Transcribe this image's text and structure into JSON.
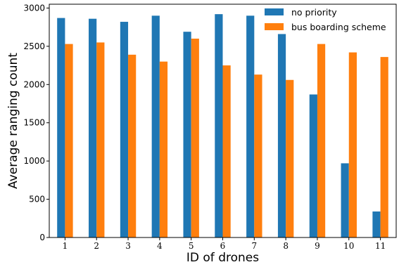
{
  "chart_data": {
    "type": "bar",
    "title": "",
    "xlabel": "ID of drones",
    "ylabel": "Average ranging count",
    "categories": [
      "1",
      "2",
      "3",
      "4",
      "5",
      "6",
      "7",
      "8",
      "9",
      "10",
      "11"
    ],
    "ylim": [
      0,
      3050
    ],
    "yticks": [
      "0",
      "500",
      "1000",
      "1500",
      "2000",
      "2500",
      "3000"
    ],
    "grid": false,
    "legend_position": "top-right",
    "series": [
      {
        "name": "no priority",
        "color": "#1f77b4",
        "values": [
          2870,
          2860,
          2820,
          2900,
          2690,
          2920,
          2900,
          2660,
          1870,
          970,
          340
        ]
      },
      {
        "name": "bus boarding scheme",
        "color": "#ff7f0e",
        "values": [
          2530,
          2550,
          2390,
          2300,
          2600,
          2250,
          2130,
          2060,
          2530,
          2420,
          2360
        ]
      }
    ]
  }
}
